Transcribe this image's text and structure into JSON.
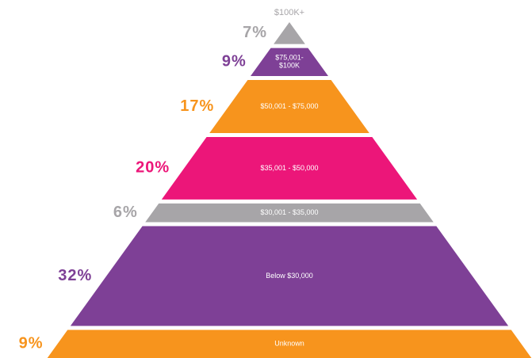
{
  "chart_data": {
    "type": "pyramid",
    "categories": [
      "$100K+",
      "$75,001-$100K",
      "$50,001 - $75,000",
      "$35,001 - $50,000",
      "$30,001 - $35,000",
      "Below $30,000",
      "Unknown"
    ],
    "values": [
      7,
      9,
      17,
      20,
      6,
      32,
      9
    ],
    "value_labels": [
      "7%",
      "9%",
      "17%",
      "20%",
      "6%",
      "32%",
      "9%"
    ],
    "colors": [
      "#a7a5a8",
      "#7e4096",
      "#f7941d",
      "#ec1679",
      "#a7a5a8",
      "#7e4096",
      "#f7941d"
    ]
  }
}
